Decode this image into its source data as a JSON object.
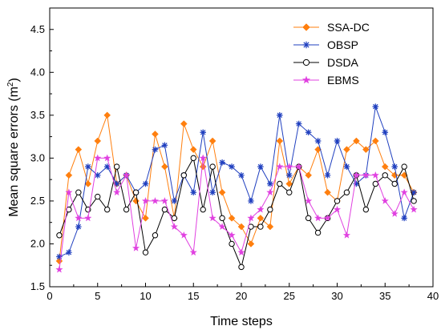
{
  "chart_data": {
    "type": "line",
    "xlabel": "Time steps",
    "ylabel": "Mean square errors (m",
    "ylabel_sup": "2",
    "ylabel_close": ")",
    "xlim": [
      0,
      40
    ],
    "ylim": [
      1.5,
      4.75
    ],
    "xticks": [
      "0",
      "5",
      "10",
      "15",
      "20",
      "25",
      "30",
      "35",
      "40"
    ],
    "yticks": [
      "1.5",
      "2.0",
      "2.5",
      "3.0",
      "3.5",
      "4.0",
      "4.5"
    ],
    "grid": false,
    "legend_position": "top-right",
    "x": [
      1,
      2,
      3,
      4,
      5,
      6,
      7,
      8,
      9,
      10,
      11,
      12,
      13,
      14,
      15,
      16,
      17,
      18,
      19,
      20,
      21,
      22,
      23,
      24,
      25,
      26,
      27,
      28,
      29,
      30,
      31,
      32,
      33,
      34,
      35,
      36,
      37,
      38
    ],
    "series": [
      {
        "name": "SSA-DC",
        "color": "#ff7f0e",
        "marker": "diamond",
        "values": [
          1.8,
          2.8,
          3.1,
          2.7,
          3.2,
          3.5,
          2.7,
          2.8,
          2.5,
          2.3,
          3.28,
          2.9,
          2.3,
          3.4,
          3.1,
          2.9,
          3.2,
          2.6,
          2.3,
          2.2,
          2.0,
          2.3,
          2.2,
          3.2,
          2.7,
          2.9,
          2.8,
          3.1,
          2.6,
          2.5,
          3.1,
          3.2,
          3.1,
          3.2,
          2.9,
          2.8,
          2.8,
          2.6
        ]
      },
      {
        "name": "OBSP",
        "color": "#1f3fbf",
        "marker": "asterisk",
        "values": [
          1.85,
          1.9,
          2.2,
          2.9,
          2.8,
          2.9,
          2.7,
          2.8,
          2.6,
          2.7,
          3.1,
          3.15,
          2.5,
          2.8,
          2.6,
          3.3,
          2.6,
          2.95,
          2.9,
          2.8,
          2.5,
          2.9,
          2.7,
          3.5,
          2.8,
          3.4,
          3.3,
          3.2,
          2.8,
          3.2,
          2.9,
          2.7,
          2.8,
          3.6,
          3.3,
          2.9,
          2.3,
          2.6
        ]
      },
      {
        "name": "DSDA",
        "color": "#000000",
        "marker": "circle",
        "values": [
          2.1,
          2.4,
          2.6,
          2.4,
          2.55,
          2.4,
          2.9,
          2.4,
          2.6,
          1.9,
          2.1,
          2.4,
          2.3,
          2.8,
          3.0,
          2.4,
          2.9,
          2.3,
          2.0,
          1.73,
          2.2,
          2.2,
          2.4,
          2.7,
          2.6,
          2.9,
          2.3,
          2.13,
          2.3,
          2.5,
          2.6,
          2.8,
          2.4,
          2.7,
          2.8,
          2.7,
          2.9,
          2.5
        ]
      },
      {
        "name": "EBMS",
        "color": "#e040e0",
        "marker": "star",
        "values": [
          1.7,
          2.6,
          2.3,
          2.3,
          3.0,
          3.0,
          2.6,
          2.8,
          1.95,
          2.5,
          2.5,
          2.5,
          2.2,
          2.1,
          1.9,
          3.0,
          2.3,
          2.2,
          2.1,
          1.9,
          2.3,
          2.4,
          2.6,
          2.9,
          2.9,
          2.9,
          2.5,
          2.3,
          2.3,
          2.4,
          2.1,
          2.8,
          2.8,
          2.8,
          2.5,
          2.35,
          2.6,
          2.4
        ]
      }
    ]
  }
}
